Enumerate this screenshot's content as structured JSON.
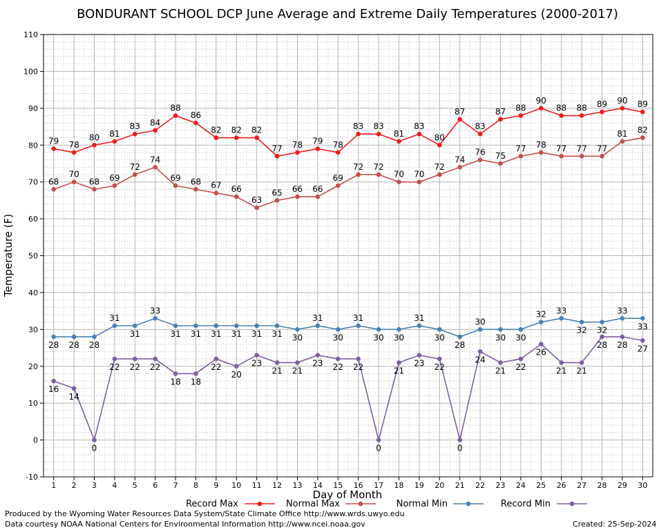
{
  "chart_data": {
    "type": "line",
    "title": "BONDURANT SCHOOL DCP June Average and Extreme Daily Temperatures (2000-2017)",
    "xlabel": "Day of Month",
    "ylabel": "Temperature (F)",
    "ylim": [
      -10,
      110
    ],
    "yticks": [
      -10,
      0,
      10,
      20,
      30,
      40,
      50,
      60,
      70,
      80,
      90,
      100,
      110
    ],
    "x": [
      1,
      2,
      3,
      4,
      5,
      6,
      7,
      8,
      9,
      10,
      11,
      12,
      13,
      14,
      15,
      16,
      17,
      18,
      19,
      20,
      21,
      22,
      23,
      24,
      25,
      26,
      27,
      28,
      29,
      30
    ],
    "grid": true,
    "legend_placement": "bottom",
    "series": [
      {
        "name": "Record Max",
        "color": "#ee1c1c",
        "label_pos": "above",
        "values": [
          79,
          78,
          80,
          81,
          83,
          84,
          88,
          86,
          82,
          82,
          82,
          77,
          78,
          79,
          78,
          83,
          83,
          81,
          83,
          80,
          87,
          83,
          87,
          88,
          90,
          88,
          88,
          89,
          90,
          89
        ]
      },
      {
        "name": "Normal Max",
        "color": "#c0504d",
        "label_pos": "above",
        "values": [
          68,
          70,
          68,
          69,
          72,
          74,
          69,
          68,
          67,
          66,
          63,
          65,
          66,
          66,
          69,
          72,
          72,
          70,
          70,
          72,
          74,
          76,
          75,
          77,
          78,
          77,
          77,
          77,
          81,
          82
        ]
      },
      {
        "name": "Normal Min",
        "color": "#4a80b4",
        "label_pos": "below_mixed",
        "values": [
          28,
          28,
          28,
          31,
          31,
          33,
          31,
          31,
          31,
          31,
          31,
          31,
          30,
          31,
          30,
          31,
          30,
          30,
          31,
          30,
          28,
          30,
          30,
          30,
          32,
          33,
          32,
          32,
          33,
          33
        ]
      },
      {
        "name": "Record Min",
        "color": "#7f5fa0",
        "label_pos": "below",
        "values": [
          16,
          14,
          0,
          22,
          22,
          22,
          18,
          18,
          22,
          20,
          23,
          21,
          21,
          23,
          22,
          22,
          0,
          21,
          23,
          22,
          0,
          24,
          21,
          22,
          26,
          21,
          21,
          28,
          28,
          27
        ]
      }
    ]
  },
  "footer": {
    "credit_line1": "Produced by the Wyoming Water Resources Data System/State Climate Office http://www.wrds.uwyo.edu",
    "credit_line2": "Data courtesy NOAA National Centers for Environmental Information http://www.ncei.noaa.gov",
    "created": "Created:  25-Sep-2024"
  }
}
